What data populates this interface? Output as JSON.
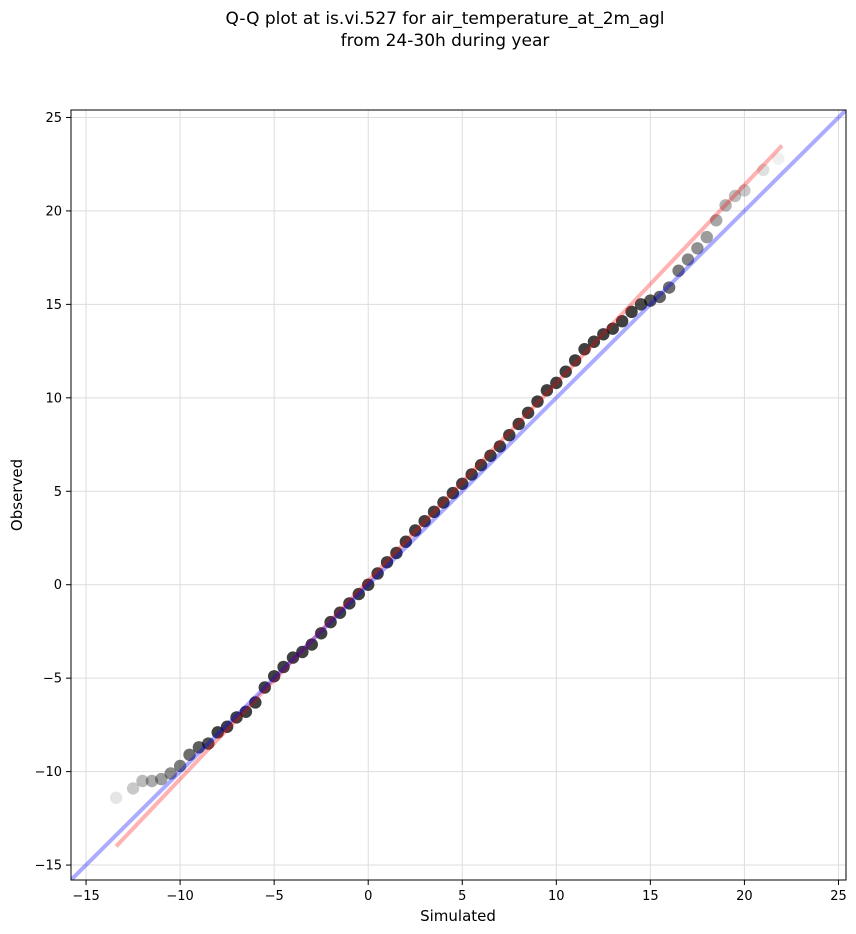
{
  "title": {
    "line1": "Q-Q plot at is.vi.527 for air_temperature_at_2m_agl",
    "line2": "from 24-30h during year"
  },
  "chart_data": {
    "type": "scatter",
    "title": "Q-Q plot at is.vi.527 for air_temperature_at_2m_agl\nfrom 24-30h during year",
    "xlabel": "Simulated",
    "ylabel": "Observed",
    "xlim": [
      -15.8,
      25.4
    ],
    "ylim": [
      -15.8,
      25.4
    ],
    "xticks": [
      -15,
      -10,
      -5,
      0,
      5,
      10,
      15,
      20,
      25
    ],
    "yticks": [
      -15,
      -10,
      -5,
      0,
      5,
      10,
      15,
      20,
      25
    ],
    "xtick_labels": [
      "−15",
      "−10",
      "−5",
      "0",
      "5",
      "10",
      "15",
      "20",
      "25"
    ],
    "ytick_labels": [
      "−15",
      "−10",
      "−5",
      "0",
      "5",
      "10",
      "15",
      "20",
      "25"
    ],
    "grid": true,
    "legend": "none",
    "series": [
      {
        "kind": "quantile_points",
        "color": "#000000",
        "points": [
          [
            -13.4,
            -11.4
          ],
          [
            -12.5,
            -10.9
          ],
          [
            -12.0,
            -10.5
          ],
          [
            -11.5,
            -10.5
          ],
          [
            -11.0,
            -10.4
          ],
          [
            -10.5,
            -10.1
          ],
          [
            -10.0,
            -9.7
          ],
          [
            -9.5,
            -9.1
          ],
          [
            -9.0,
            -8.7
          ],
          [
            -8.5,
            -8.5
          ],
          [
            -8.0,
            -7.9
          ],
          [
            -7.5,
            -7.6
          ],
          [
            -7.0,
            -7.1
          ],
          [
            -6.5,
            -6.8
          ],
          [
            -6.0,
            -6.3
          ],
          [
            -5.5,
            -5.5
          ],
          [
            -5.0,
            -4.9
          ],
          [
            -4.5,
            -4.4
          ],
          [
            -4.0,
            -3.9
          ],
          [
            -3.5,
            -3.6
          ],
          [
            -3.0,
            -3.2
          ],
          [
            -2.5,
            -2.6
          ],
          [
            -2.0,
            -2.0
          ],
          [
            -1.5,
            -1.5
          ],
          [
            -1.0,
            -1.0
          ],
          [
            -0.5,
            -0.5
          ],
          [
            0.0,
            0.0
          ],
          [
            0.5,
            0.6
          ],
          [
            1.0,
            1.2
          ],
          [
            1.5,
            1.7
          ],
          [
            2.0,
            2.3
          ],
          [
            2.5,
            2.9
          ],
          [
            3.0,
            3.4
          ],
          [
            3.5,
            3.9
          ],
          [
            4.0,
            4.4
          ],
          [
            4.5,
            4.9
          ],
          [
            5.0,
            5.4
          ],
          [
            5.5,
            5.9
          ],
          [
            6.0,
            6.4
          ],
          [
            6.5,
            6.9
          ],
          [
            7.0,
            7.4
          ],
          [
            7.5,
            8.0
          ],
          [
            8.0,
            8.6
          ],
          [
            8.5,
            9.2
          ],
          [
            9.0,
            9.8
          ],
          [
            9.5,
            10.4
          ],
          [
            10.0,
            10.8
          ],
          [
            10.5,
            11.4
          ],
          [
            11.0,
            12.0
          ],
          [
            11.5,
            12.6
          ],
          [
            12.0,
            13.0
          ],
          [
            12.5,
            13.4
          ],
          [
            13.0,
            13.7
          ],
          [
            13.5,
            14.1
          ],
          [
            14.0,
            14.6
          ],
          [
            14.5,
            15.0
          ],
          [
            15.0,
            15.2
          ],
          [
            15.5,
            15.4
          ],
          [
            16.0,
            15.9
          ],
          [
            16.5,
            16.8
          ],
          [
            17.0,
            17.4
          ],
          [
            17.5,
            18.0
          ],
          [
            18.0,
            18.6
          ],
          [
            18.5,
            19.5
          ],
          [
            19.0,
            20.3
          ],
          [
            19.5,
            20.8
          ],
          [
            20.0,
            21.1
          ],
          [
            21.0,
            22.2
          ],
          [
            21.8,
            22.8
          ]
        ]
      },
      {
        "name": "",
        "kind": "line",
        "color": "#ff0000",
        "alpha": 0.3,
        "x": [
          -13.4,
          22.0
        ],
        "y": [
          -14.0,
          23.5
        ]
      },
      {
        "name": "",
        "kind": "line",
        "color": "#0000ff",
        "alpha": 0.33,
        "x": [
          -15.8,
          25.4
        ],
        "y": [
          -15.8,
          25.4
        ]
      }
    ]
  }
}
